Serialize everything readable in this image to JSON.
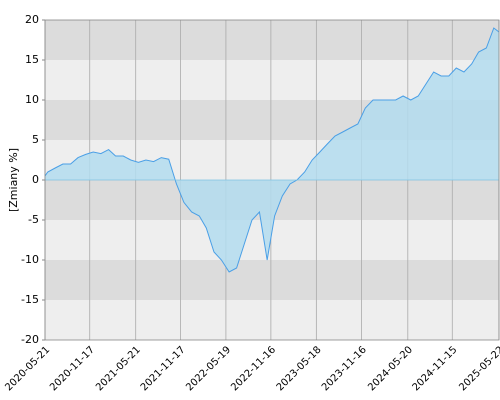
{
  "chart_data": {
    "type": "area",
    "y_label": "[Zmiany %]",
    "x": [
      "2020-05-21",
      "2020-06-01",
      "2020-07-01",
      "2020-08-01",
      "2020-09-01",
      "2020-10-01",
      "2020-11-01",
      "2020-12-01",
      "2021-01-01",
      "2021-02-01",
      "2021-03-01",
      "2021-04-01",
      "2021-05-01",
      "2021-06-01",
      "2021-07-01",
      "2021-08-01",
      "2021-09-01",
      "2021-10-01",
      "2021-11-01",
      "2021-12-01",
      "2022-01-01",
      "2022-02-01",
      "2022-03-01",
      "2022-04-01",
      "2022-05-01",
      "2022-06-01",
      "2022-07-01",
      "2022-08-01",
      "2022-09-01",
      "2022-10-01",
      "2022-11-01",
      "2022-12-01",
      "2023-01-01",
      "2023-02-01",
      "2023-03-01",
      "2023-04-01",
      "2023-05-01",
      "2023-06-01",
      "2023-07-01",
      "2023-08-01",
      "2023-09-01",
      "2023-10-01",
      "2023-11-01",
      "2023-12-01",
      "2024-01-01",
      "2024-02-01",
      "2024-03-01",
      "2024-04-01",
      "2024-05-01",
      "2024-06-01",
      "2024-07-01",
      "2024-08-01",
      "2024-09-01",
      "2024-10-01",
      "2024-11-01",
      "2024-12-01",
      "2025-01-01",
      "2025-02-01",
      "2025-03-01",
      "2025-04-01",
      "2025-05-01",
      "2025-05-22"
    ],
    "series": [
      {
        "color": "#4a9fe6",
        "fill": "#b3dcee",
        "values": [
          0.5,
          1,
          1.5,
          2,
          2,
          2.8,
          3.2,
          3.5,
          3.3,
          3.8,
          3,
          3,
          2.5,
          2.2,
          2.5,
          2.3,
          2.8,
          2.6,
          -0.5,
          -2.8,
          -4,
          -4.5,
          -6,
          -9,
          -10,
          -11.5,
          -11,
          -8,
          -5,
          -4,
          -10,
          -4.5,
          -2,
          -0.5,
          0,
          1,
          2.5,
          3.5,
          4.5,
          5.5,
          6,
          6.5,
          7,
          9,
          10,
          10,
          10,
          10,
          10.5,
          10,
          10.5,
          12,
          13.5,
          13,
          13,
          14,
          13.5,
          14.5,
          16,
          16.5,
          19,
          18.5
        ]
      }
    ],
    "xlim": [
      "2020-05-21",
      "2025-05-22"
    ],
    "xticks": [
      "2020-05-21",
      "2020-11-17",
      "2021-05-21",
      "2021-11-17",
      "2022-05-19",
      "2022-11-16",
      "2023-05-18",
      "2023-11-16",
      "2024-05-20",
      "2024-11-15",
      "2025-05-22"
    ],
    "ylim": [
      -20,
      20
    ],
    "yticks": [
      -20,
      -15,
      -10,
      -5,
      0,
      5,
      10,
      15,
      20
    ],
    "band_colors": [
      "#eeeeee",
      "#dcdcdc"
    ],
    "grid": true
  }
}
